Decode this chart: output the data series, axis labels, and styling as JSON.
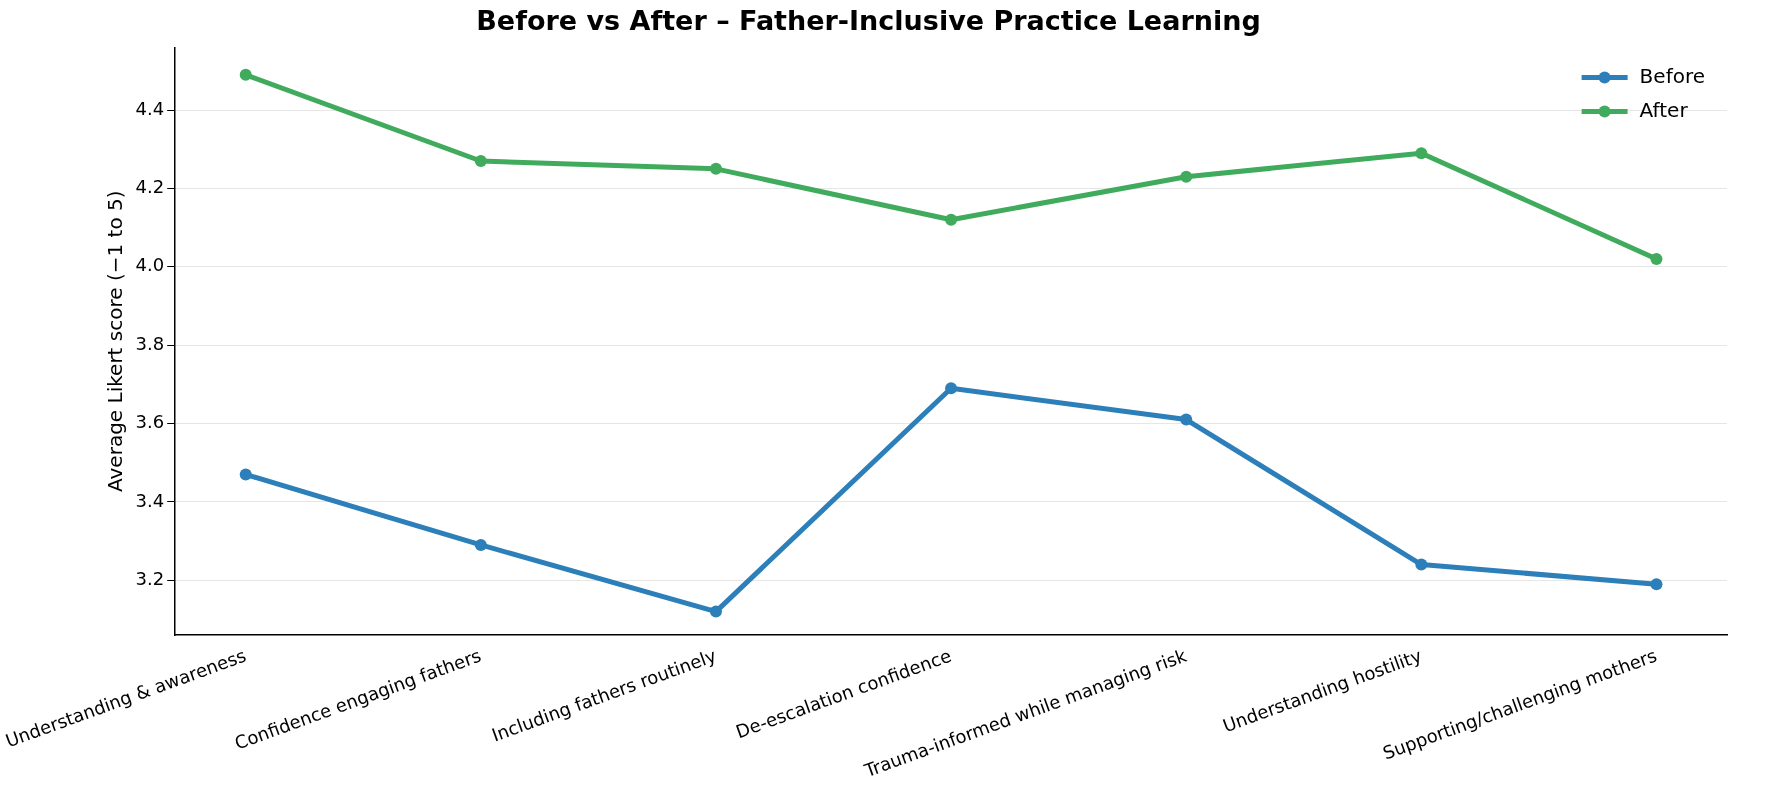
{
  "chart_data": {
    "type": "line",
    "title": "Before vs After – Father-Inclusive Practice Learning",
    "ylabel": "Average Likert score (−1 to 5)",
    "categories": [
      "Understanding & awareness",
      "Confidence engaging fathers",
      "Including fathers routinely",
      "De-escalation confidence",
      "Trauma-informed while managing risk",
      "Understanding hostility",
      "Supporting/challenging mothers"
    ],
    "series": [
      {
        "name": "Before",
        "color": "#2c7fb8",
        "values": [
          3.47,
          3.29,
          3.12,
          3.69,
          3.61,
          3.24,
          3.19
        ]
      },
      {
        "name": "After",
        "color": "#41ab5d",
        "values": [
          4.49,
          4.27,
          4.25,
          4.12,
          4.23,
          4.29,
          4.02
        ]
      }
    ],
    "ylim": [
      3.06,
      4.56
    ],
    "yticks": [
      {
        "value": 3.2,
        "label": "3.2"
      },
      {
        "value": 3.4,
        "label": "3.4"
      },
      {
        "value": 3.6,
        "label": "3.6"
      },
      {
        "value": 3.8,
        "label": "3.8"
      },
      {
        "value": 4.0,
        "label": "4.0"
      },
      {
        "value": 4.2,
        "label": "4.2"
      },
      {
        "value": 4.4,
        "label": "4.4"
      }
    ],
    "grid": "y",
    "legend": "top right",
    "marker": "circle",
    "line_style": "solid"
  }
}
